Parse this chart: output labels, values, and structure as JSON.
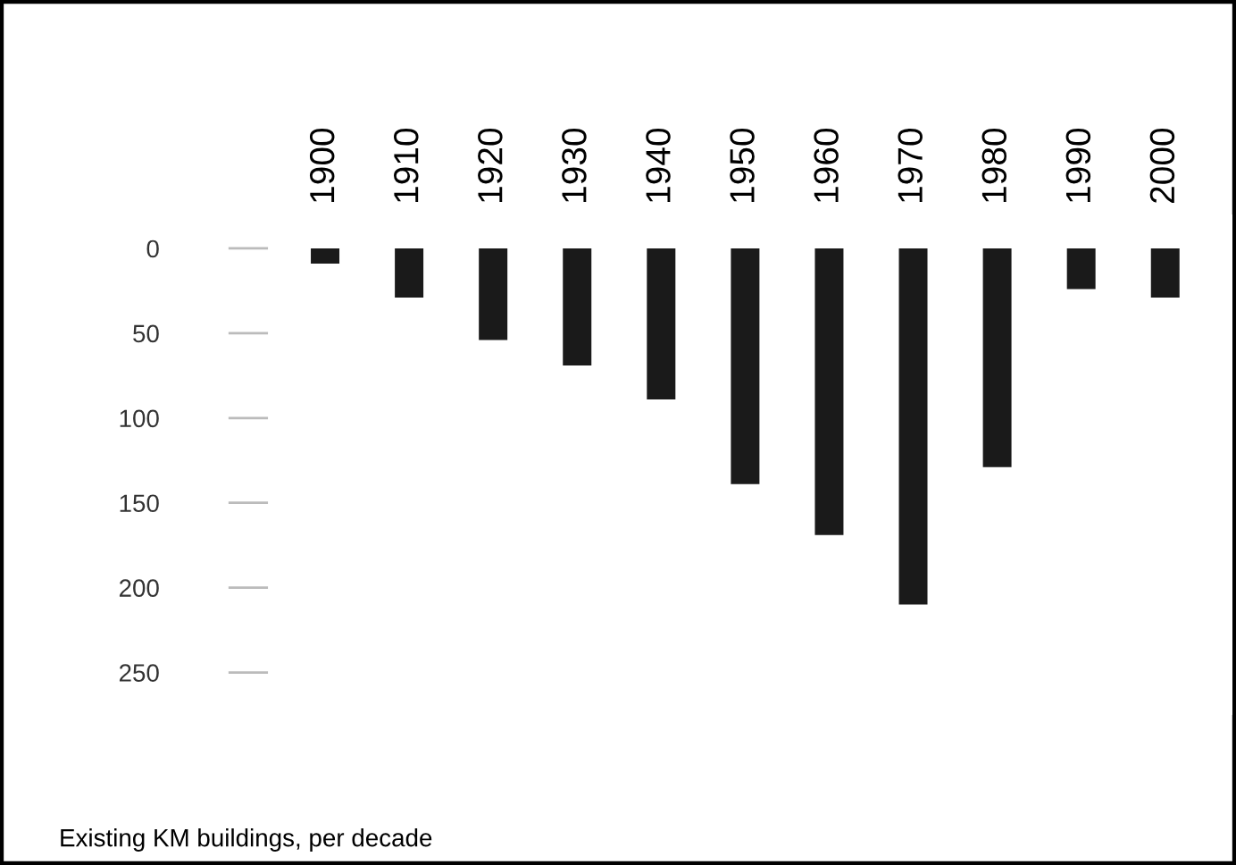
{
  "chart_data": {
    "type": "bar",
    "categories": [
      "1900",
      "1910",
      "1920",
      "1930",
      "1940",
      "1950",
      "1960",
      "1970",
      "1980",
      "1990",
      "2000"
    ],
    "values": [
      9,
      29,
      54,
      69,
      89,
      139,
      169,
      210,
      129,
      24,
      29
    ],
    "color": "#1a1a1a",
    "ylim": [
      275,
      -20
    ],
    "yticks": [
      0,
      50,
      100,
      150,
      200,
      250
    ],
    "grid": false,
    "annotations": [
      "Existing KM buildings, per decade"
    ]
  }
}
